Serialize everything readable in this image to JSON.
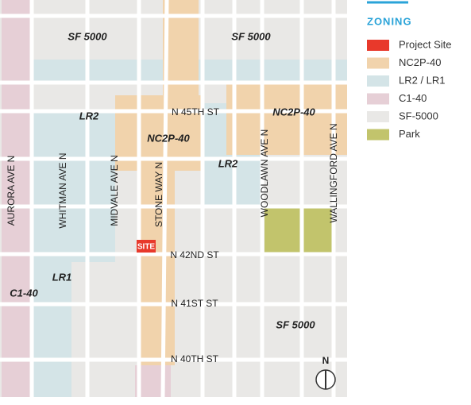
{
  "legend": {
    "title": "ZONING",
    "items": [
      {
        "label": "Project Site",
        "color": "#e8392b"
      },
      {
        "label": "NC2P-40",
        "color": "#f1d3ac"
      },
      {
        "label": "LR2 / LR1",
        "color": "#d4e4e7"
      },
      {
        "label": "C1-40",
        "color": "#e6cfd6"
      },
      {
        "label": "SF-5000",
        "color": "#e9e8e6"
      },
      {
        "label": "Park",
        "color": "#c2c46c"
      }
    ]
  },
  "zone_labels": [
    "SF 5000",
    "SF 5000",
    "LR2",
    "NC2P-40",
    "NC2P-40",
    "LR2",
    "LR1",
    "C1-40",
    "SF 5000"
  ],
  "avenue_labels": [
    "AURORA AVE N",
    "WHITMAN AVE N",
    "MIDVALE AVE N",
    "STONE WAY N",
    "WOODLAWN AVE N",
    "WALLINGFORD AVE N"
  ],
  "street_labels": [
    "N 45TH ST",
    "N 42ND ST",
    "N 41ST ST",
    "N 40TH ST"
  ],
  "site_label": "SITE",
  "north_label": "N"
}
